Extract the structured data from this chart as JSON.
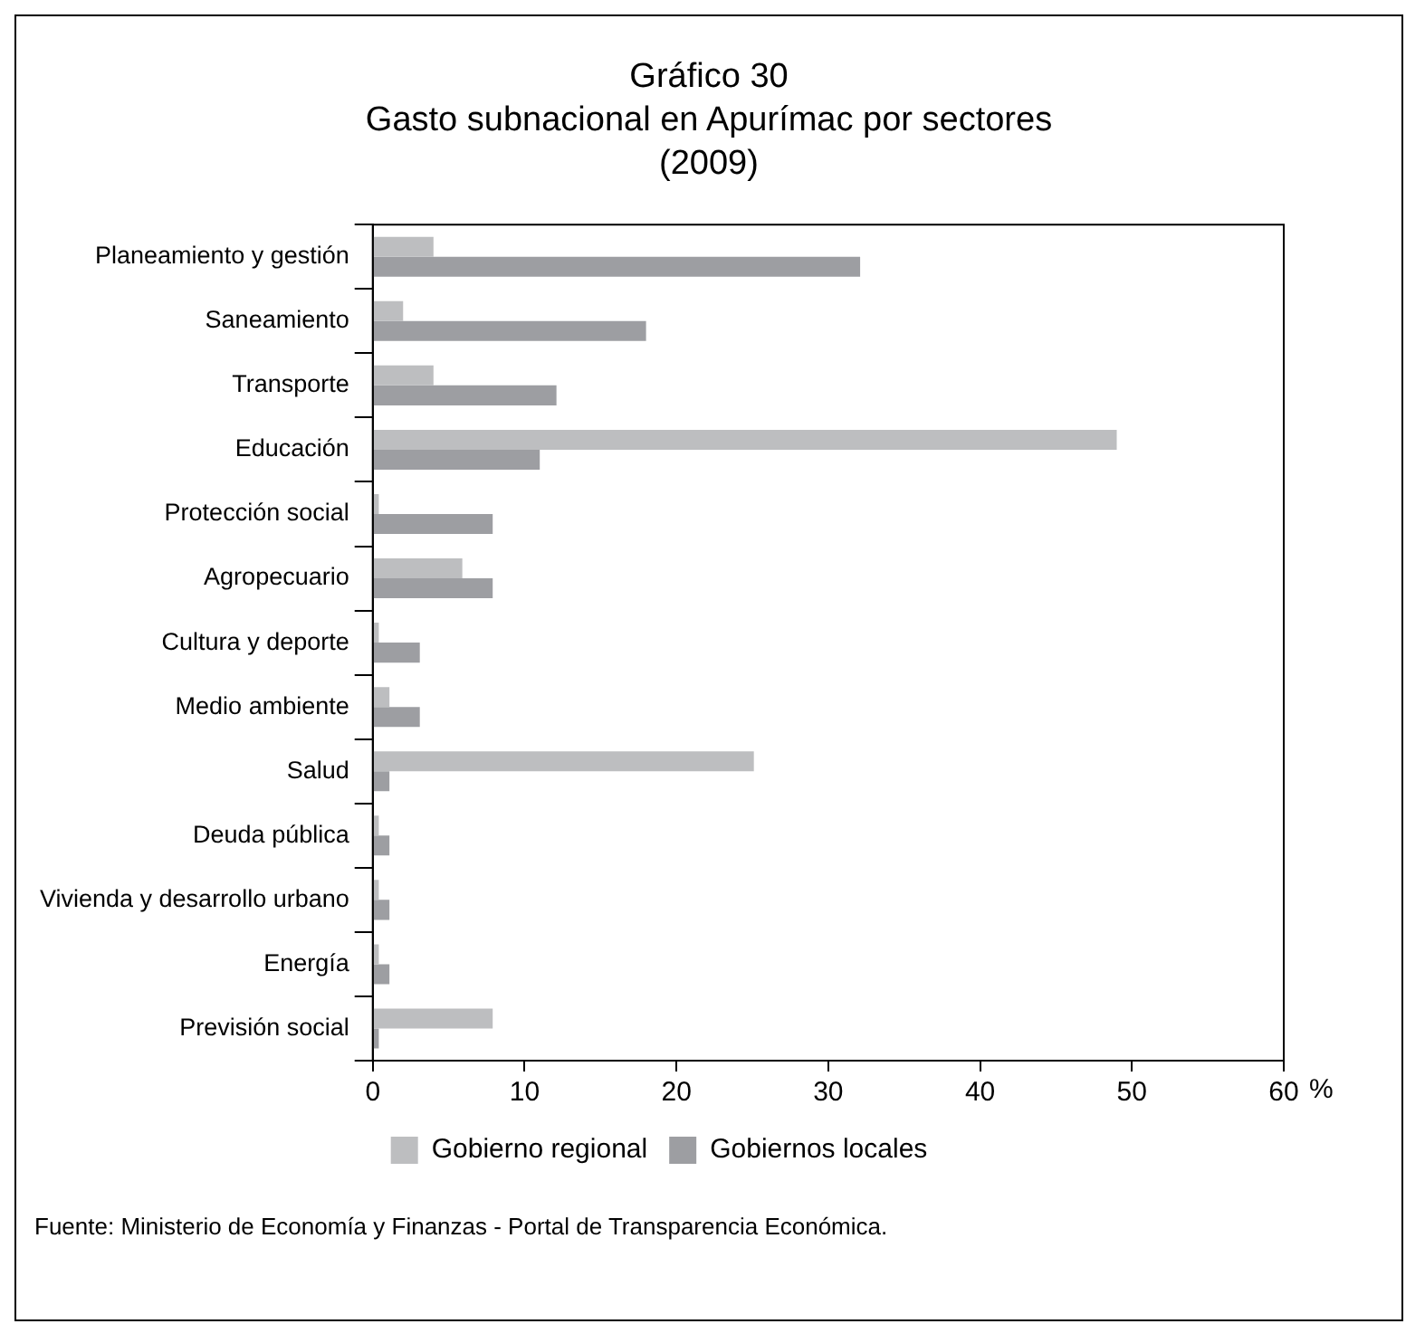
{
  "chart_data": {
    "type": "bar",
    "orientation": "horizontal",
    "title": "Gráfico 30",
    "subtitle": "Gasto subnacional en Apurímac por sectores (2009)",
    "xlabel": "%",
    "categories": [
      "Planeamiento y gestión",
      "Saneamiento",
      "Transporte",
      "Educación",
      "Protección social",
      "Agropecuario",
      "Cultura y deporte",
      "Medio ambiente",
      "Salud",
      "Deuda pública",
      "Vivienda y desarrollo urbano",
      "Energía",
      "Previsión social"
    ],
    "series": [
      {
        "name": "Gobierno regional",
        "color": "#bdbec0",
        "values": [
          4.0,
          2.0,
          4.0,
          49.0,
          0.4,
          5.9,
          0.4,
          1.1,
          25.1,
          0.4,
          0.4,
          0.4,
          7.9
        ]
      },
      {
        "name": "Gobiernos locales",
        "color": "#9d9ea2",
        "values": [
          32.1,
          18.0,
          12.1,
          11.0,
          7.9,
          7.9,
          3.1,
          3.1,
          1.1,
          1.1,
          1.1,
          1.1,
          0.4
        ]
      }
    ],
    "xlim": [
      0,
      60
    ],
    "xticks": [
      0,
      10,
      20,
      30,
      40,
      50,
      60
    ],
    "grid": false,
    "legend": "bottom",
    "annotations": [
      "Fuente: Ministerio de Economía y Finanzas - Portal de Transparencia Económica."
    ]
  }
}
